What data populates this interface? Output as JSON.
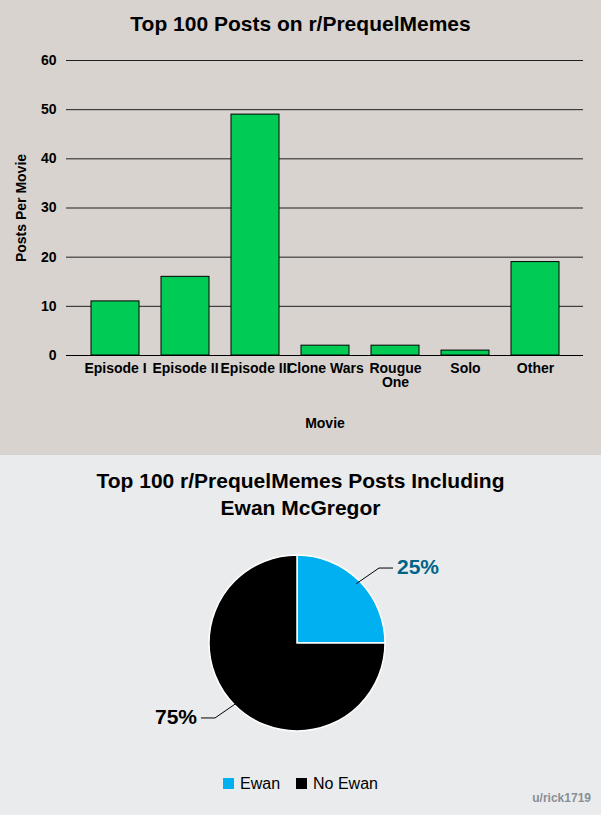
{
  "chart_data": [
    {
      "type": "bar",
      "title": "Top 100 Posts on r/PrequelMemes",
      "x_label": "Movie",
      "y_label": "Posts Per Movie",
      "categories": [
        "Episode I",
        "Episode II",
        "Episode III",
        "Clone Wars",
        "Rougue One",
        "Solo",
        "Other"
      ],
      "values": [
        11,
        16,
        49,
        2,
        2,
        1,
        19
      ],
      "color": "#00cc55",
      "ylim": [
        0,
        60
      ],
      "yticks": [
        0,
        10,
        20,
        30,
        40,
        50,
        60
      ],
      "grid": true
    },
    {
      "type": "pie",
      "title": "Top 100 r/PrequelMemes Posts Including Ewan McGregor",
      "categories": [
        "Ewan",
        "No Ewan"
      ],
      "values": [
        25,
        75
      ],
      "value_labels": [
        "25%",
        "75%"
      ],
      "colors": [
        "#00b0f0",
        "#000000"
      ],
      "data_labels": true,
      "legend": "bottom",
      "annotation": "u/rick1719"
    }
  ]
}
